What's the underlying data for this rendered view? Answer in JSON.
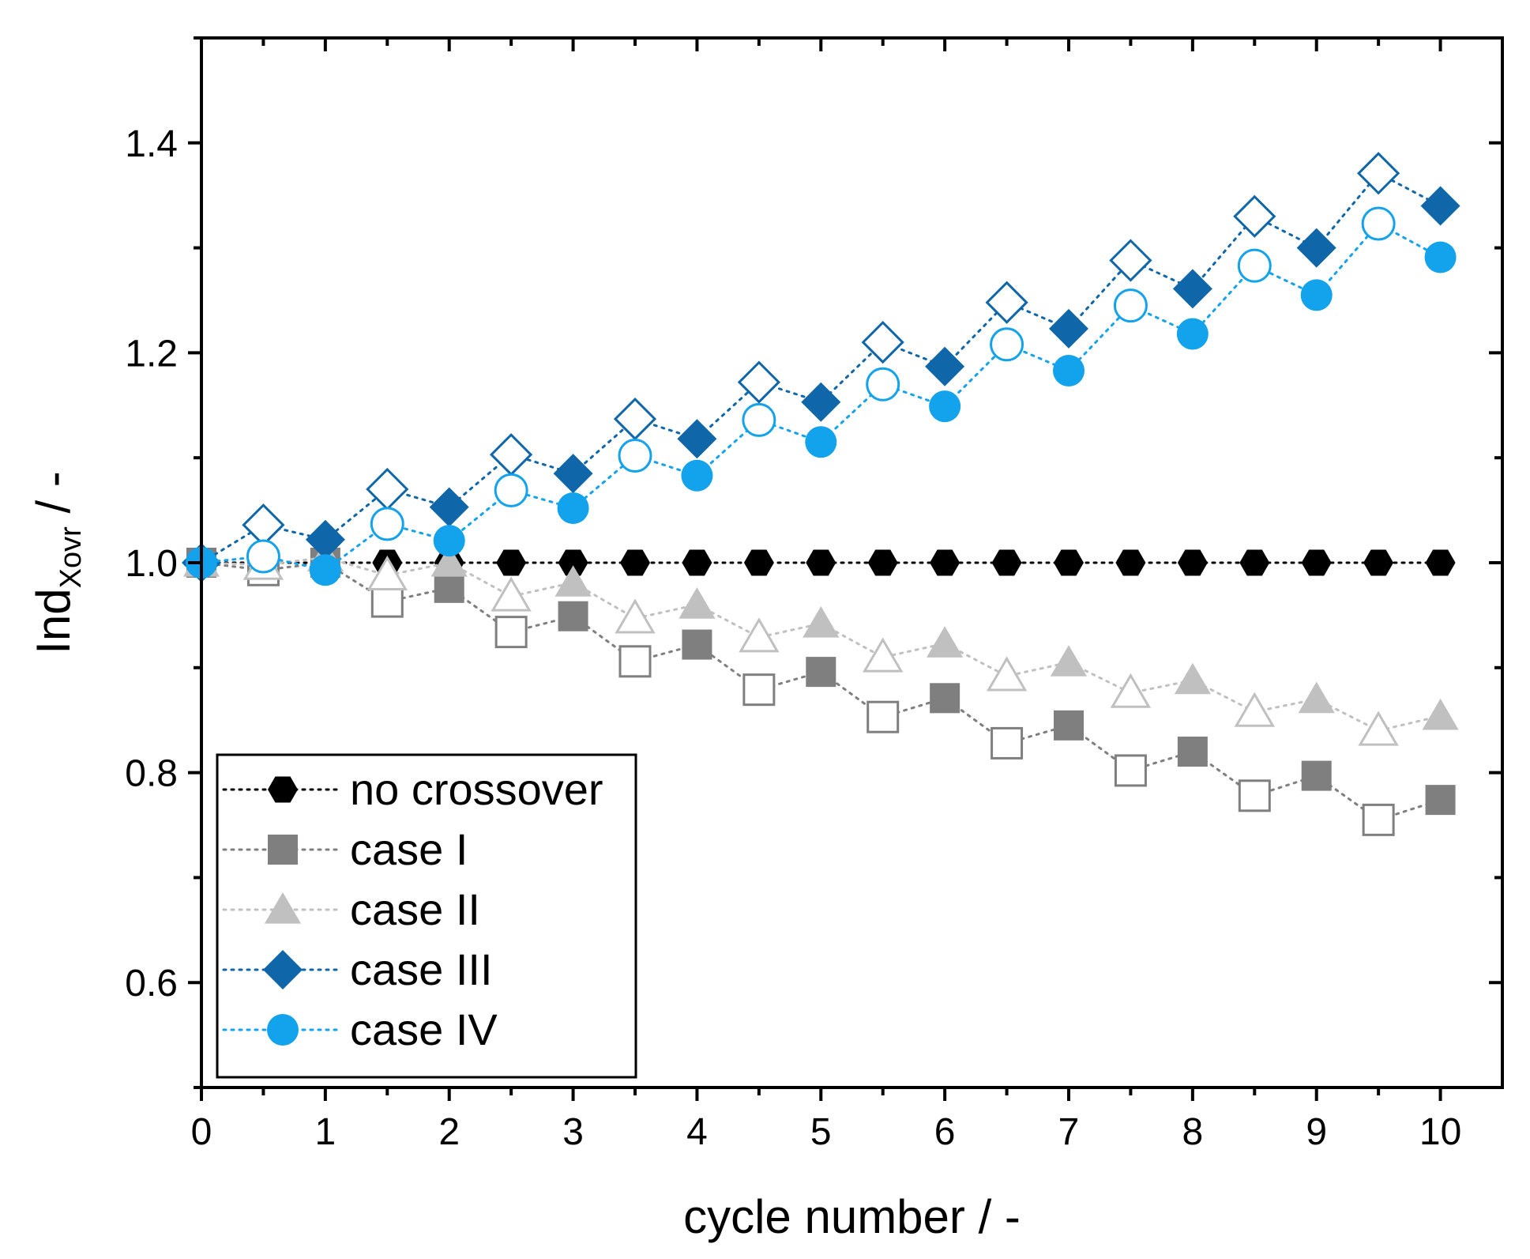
{
  "chart_data": {
    "type": "scatter",
    "xlabel": "cycle number / -",
    "ylabel": {
      "main": "Ind",
      "sub": "Xovr",
      "suffix": " / -"
    },
    "xlim": [
      0,
      10.5
    ],
    "ylim": [
      0.5,
      1.5
    ],
    "xticks": [
      0,
      1,
      2,
      3,
      4,
      5,
      6,
      7,
      8,
      9,
      10
    ],
    "yticks": [
      0.6,
      0.8,
      1.0,
      1.2,
      1.4
    ],
    "ytick_labels": [
      "0.6",
      "0.8",
      "1.0",
      "1.2",
      "1.4"
    ],
    "minor_xticks": [
      0.5,
      1.5,
      2.5,
      3.5,
      4.5,
      5.5,
      6.5,
      7.5,
      8.5,
      9.5
    ],
    "minor_yticks": [
      0.5,
      0.7,
      0.9,
      1.1,
      1.3,
      1.5
    ],
    "grid": false,
    "legend_position": "bottom-left",
    "x": [
      0,
      0.5,
      1,
      1.5,
      2,
      2.5,
      3,
      3.5,
      4,
      4.5,
      5,
      5.5,
      6,
      6.5,
      7,
      7.5,
      8,
      8.5,
      9,
      9.5,
      10
    ],
    "series": [
      {
        "name": "no crossover",
        "marker": "hexagon",
        "color": "#000000",
        "filled_at_integer_cycles": true,
        "filled_at_half_cycles": true,
        "values": [
          1.0,
          1.0,
          1.0,
          1.0,
          1.0,
          1.0,
          1.0,
          1.0,
          1.0,
          1.0,
          1.0,
          1.0,
          1.0,
          1.0,
          1.0,
          1.0,
          1.0,
          1.0,
          1.0,
          1.0,
          1.0
        ]
      },
      {
        "name": "case I",
        "marker": "square",
        "color": "#7f7f7f",
        "filled_at_integer_cycles": true,
        "filled_at_half_cycles": false,
        "values": [
          1.0,
          0.993,
          1.0,
          0.963,
          0.976,
          0.934,
          0.949,
          0.906,
          0.922,
          0.879,
          0.896,
          0.853,
          0.871,
          0.828,
          0.845,
          0.802,
          0.82,
          0.778,
          0.797,
          0.755,
          0.774
        ]
      },
      {
        "name": "case II",
        "marker": "triangle",
        "color": "#c0c0c0",
        "filled_at_integer_cycles": true,
        "filled_at_half_cycles": false,
        "values": [
          1.0,
          0.998,
          1.005,
          0.988,
          1.0,
          0.968,
          0.981,
          0.947,
          0.96,
          0.929,
          0.942,
          0.91,
          0.923,
          0.892,
          0.905,
          0.876,
          0.888,
          0.858,
          0.87,
          0.84,
          0.854
        ]
      },
      {
        "name": "case III",
        "marker": "diamond",
        "color": "#0f66a9",
        "filled_at_integer_cycles": true,
        "filled_at_half_cycles": false,
        "values": [
          1.0,
          1.036,
          1.022,
          1.07,
          1.053,
          1.103,
          1.085,
          1.137,
          1.118,
          1.172,
          1.153,
          1.21,
          1.187,
          1.248,
          1.223,
          1.288,
          1.261,
          1.33,
          1.3,
          1.371,
          1.34
        ]
      },
      {
        "name": "case IV",
        "marker": "circle",
        "color": "#13a2ec",
        "filled_at_integer_cycles": true,
        "filled_at_half_cycles": false,
        "values": [
          1.0,
          1.006,
          0.993,
          1.037,
          1.021,
          1.069,
          1.052,
          1.102,
          1.083,
          1.136,
          1.115,
          1.17,
          1.149,
          1.208,
          1.183,
          1.245,
          1.218,
          1.283,
          1.255,
          1.323,
          1.291
        ]
      }
    ]
  }
}
